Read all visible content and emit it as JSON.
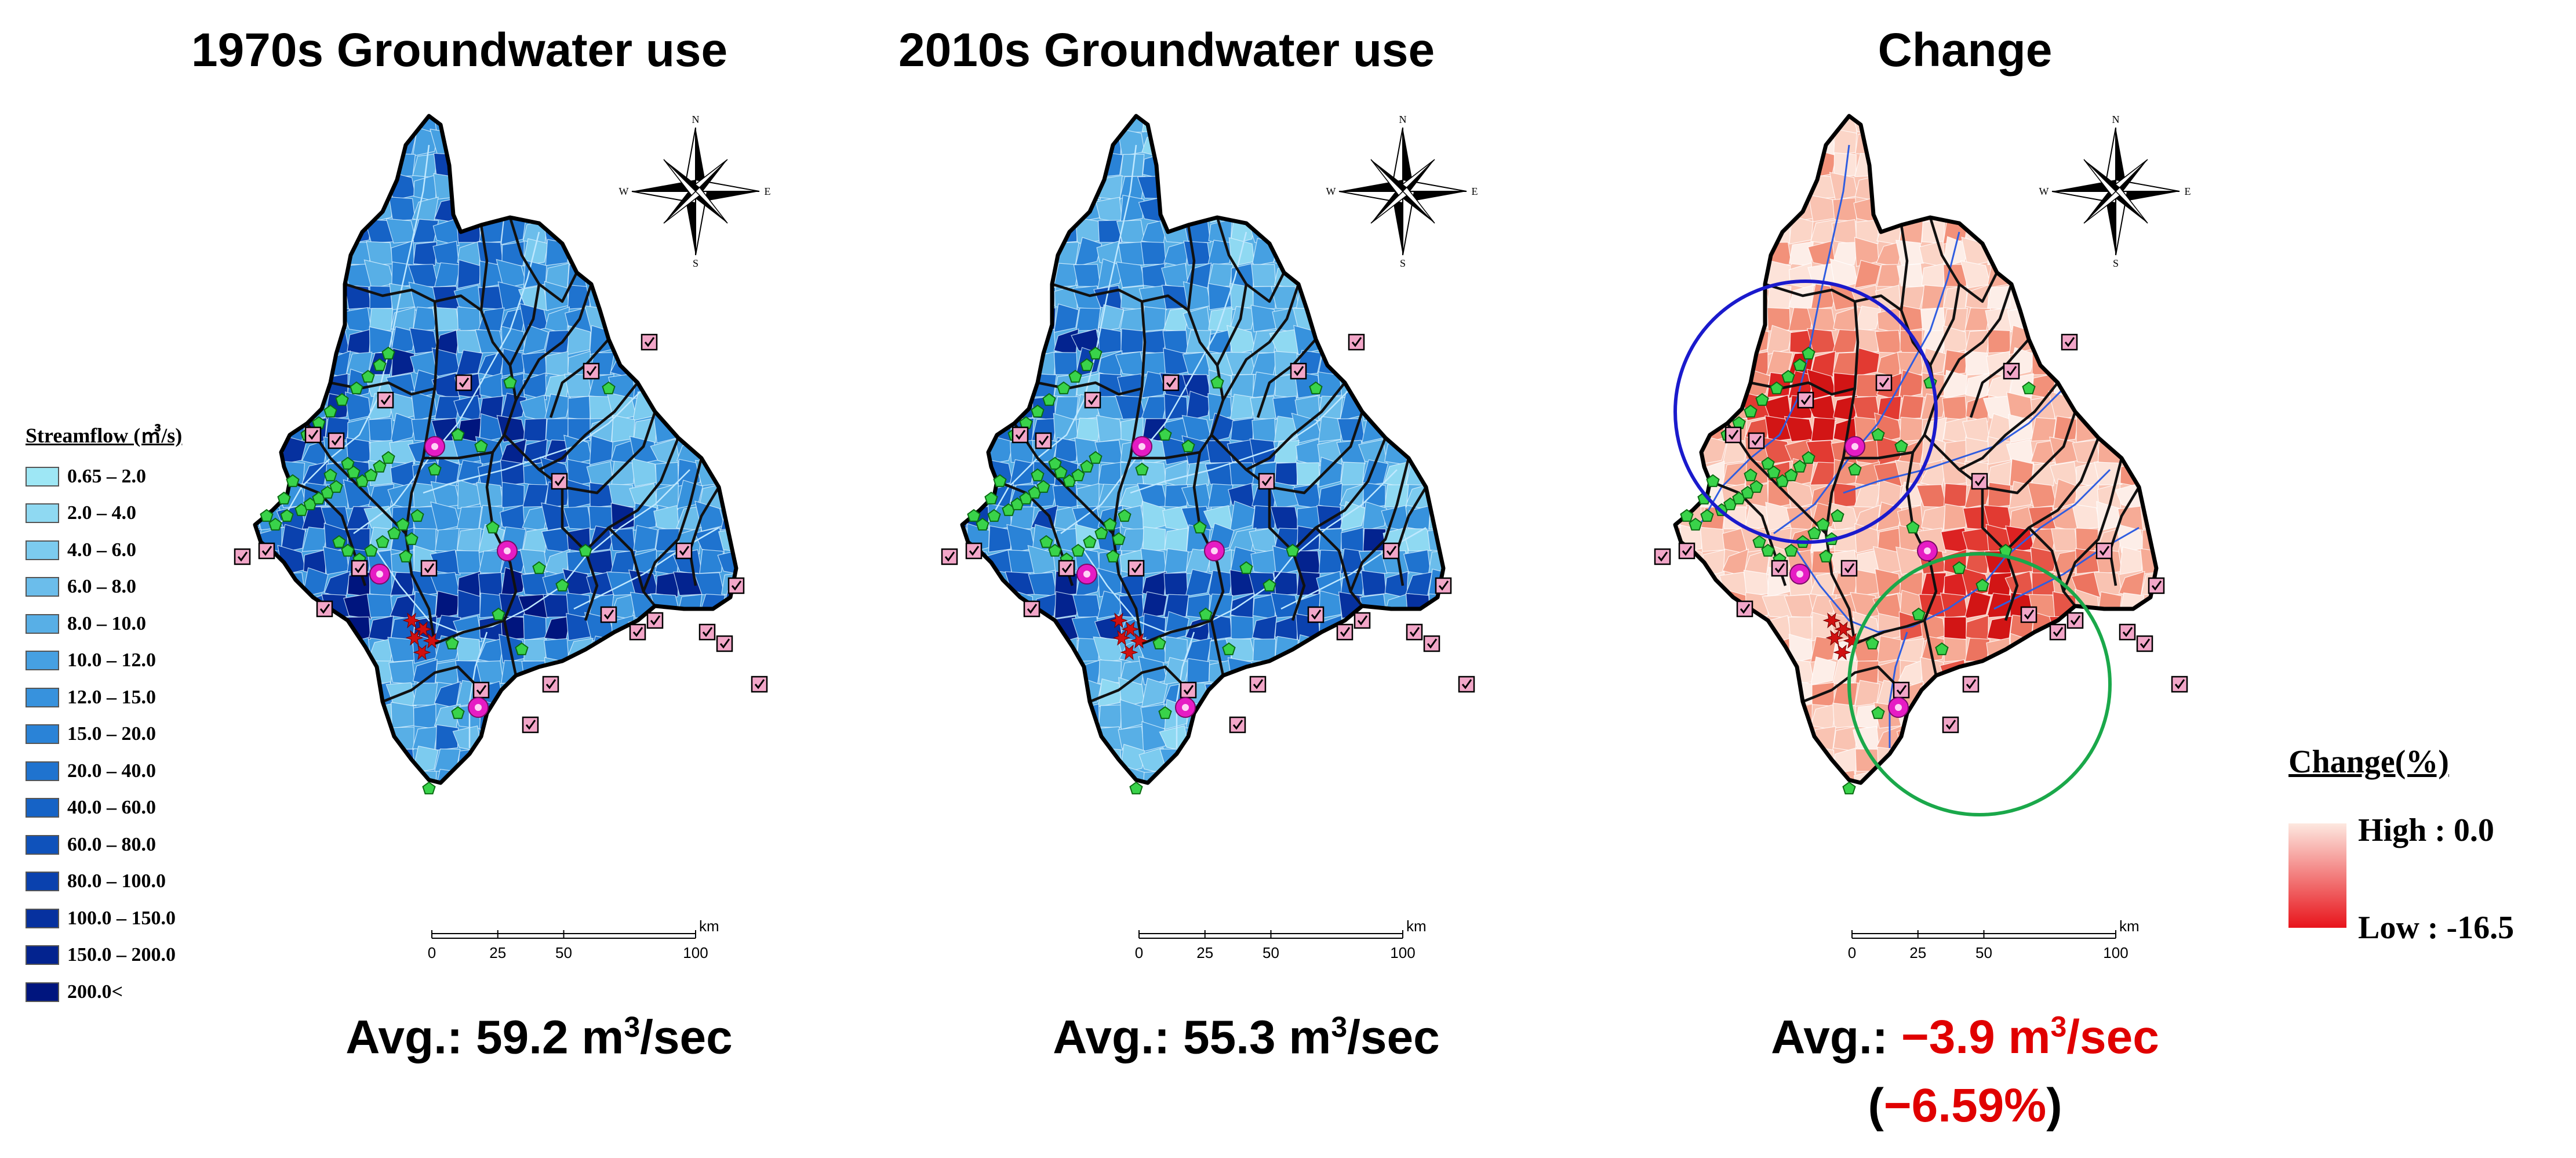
{
  "panels": [
    {
      "title": "1970s Groundwater use",
      "avg_label": "Avg.:",
      "avg_value": "59.2 m",
      "avg_sup": "3",
      "avg_unit": "/sec"
    },
    {
      "title": "2010s Groundwater use",
      "avg_label": "Avg.:",
      "avg_value": "55.3 m",
      "avg_sup": "3",
      "avg_unit": "/sec"
    },
    {
      "title": "Change",
      "avg_label": "Avg.:",
      "avg_value": "−3.9 m",
      "avg_sup": "3",
      "avg_unit": "/sec",
      "avg_pct": "(−6.59%)"
    }
  ],
  "streamflow_legend": {
    "title": "Streamflow (㎥/s)",
    "classes": [
      {
        "label": "0.65 – 2.0",
        "color": "#9ee7f5"
      },
      {
        "label": "2.0 – 4.0",
        "color": "#8fd9f2"
      },
      {
        "label": "4.0 – 6.0",
        "color": "#7ccbef"
      },
      {
        "label": "6.0 – 8.0",
        "color": "#6bbdeb"
      },
      {
        "label": "8.0 – 10.0",
        "color": "#58afe6"
      },
      {
        "label": "10.0 – 12.0",
        "color": "#46a0e2"
      },
      {
        "label": "12.0 – 15.0",
        "color": "#3792dd"
      },
      {
        "label": "15.0 – 20.0",
        "color": "#2a83d7"
      },
      {
        "label": "20.0 – 40.0",
        "color": "#1f73cf"
      },
      {
        "label": "40.0 – 60.0",
        "color": "#1663c6"
      },
      {
        "label": "60.0 – 80.0",
        "color": "#0f52bb"
      },
      {
        "label": "80.0 – 100.0",
        "color": "#0a41ae"
      },
      {
        "label": "100.0 – 150.0",
        "color": "#06319f"
      },
      {
        "label": "150.0 – 200.0",
        "color": "#03238f"
      },
      {
        "label": "200.0<",
        "color": "#00157e"
      }
    ]
  },
  "change_legend": {
    "title": "Change(%)",
    "high_label": "High : 0.0",
    "low_label": "Low : -16.5",
    "high_color": "#fde8e0",
    "low_color": "#e8141b"
  },
  "compass": {
    "n": "N",
    "s": "S",
    "w": "W",
    "e": "E"
  },
  "scale_bar": {
    "ticks": [
      "0",
      "25",
      "50",
      "100"
    ],
    "unit": "km"
  },
  "colors": {
    "title": "#000000",
    "change_avg": "#e00000",
    "circle_blue": "#1a1acc",
    "circle_green": "#1aa84a",
    "station_green": "#39d34a",
    "dam_magenta": "#e61cc4",
    "checkbox_pink": "#f2a6c8"
  },
  "icons": [
    "compass-rose-icon",
    "station-pentagon-icon",
    "dam-marker-icon",
    "checkbox-marker-icon",
    "star-marker-icon"
  ]
}
